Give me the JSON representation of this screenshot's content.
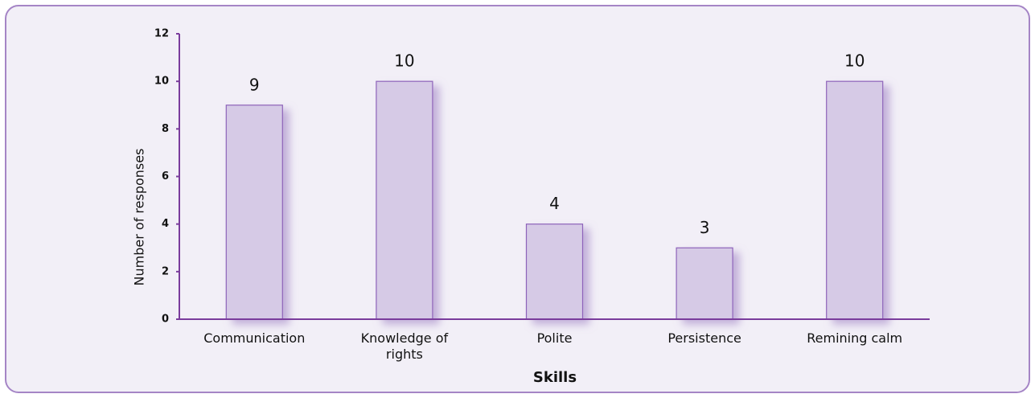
{
  "chart_data": {
    "type": "bar",
    "x_label": "Skills",
    "y_label": "Number of responses",
    "categories": [
      "Communication",
      "Knowledge of rights",
      "Polite",
      "Persistence",
      "Remining calm"
    ],
    "values": [
      9,
      10,
      4,
      3,
      10
    ],
    "color": "#d6cae6",
    "edge_color": "#8e63ba",
    "ylim": [
      0,
      12
    ],
    "yticks": [
      0,
      2,
      4,
      6,
      8,
      10,
      12
    ],
    "grid": false
  }
}
